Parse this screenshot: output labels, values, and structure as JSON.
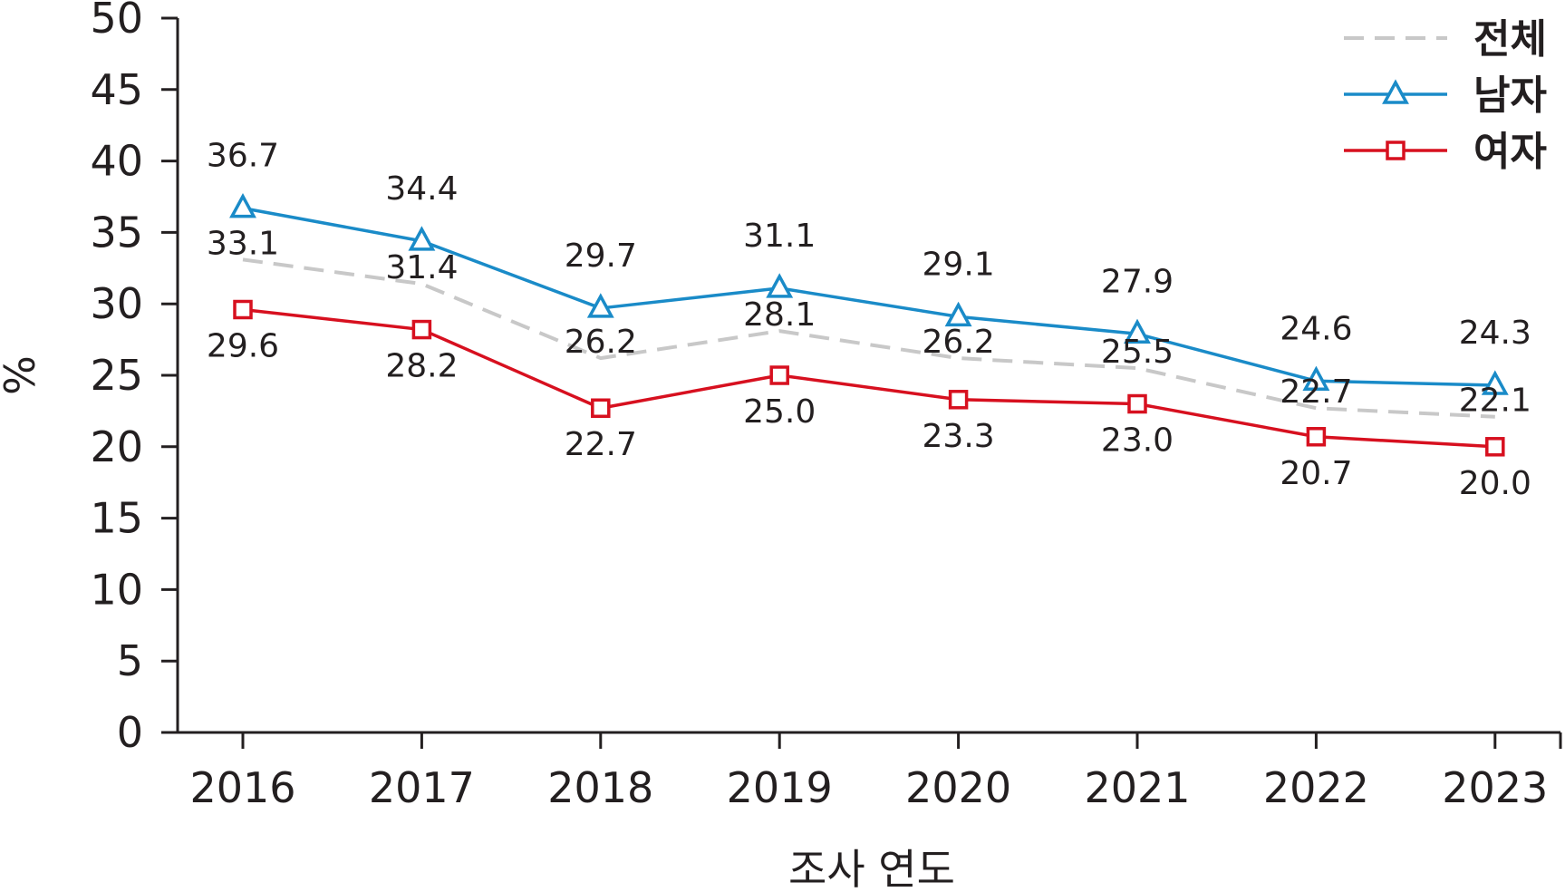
{
  "chart_data": {
    "type": "line",
    "title": "",
    "xlabel": "조사 연도",
    "ylabel": "%",
    "ylim": [
      0,
      50
    ],
    "yticks": [
      0,
      5,
      10,
      15,
      20,
      25,
      30,
      35,
      40,
      45,
      50
    ],
    "categories": [
      "2016",
      "2017",
      "2018",
      "2019",
      "2020",
      "2021",
      "2022",
      "2023"
    ],
    "grid": false,
    "legend_position": "top-right",
    "series": [
      {
        "name": "전체",
        "values": [
          33.1,
          31.4,
          26.2,
          28.1,
          26.2,
          25.5,
          22.7,
          22.1
        ],
        "labels": [
          "33.1",
          "31.4",
          "26.2",
          "28.1",
          "26.2",
          "25.5",
          "22.7",
          "22.1"
        ],
        "color": "#c8c8c8",
        "line_style": "dashed",
        "marker": "none"
      },
      {
        "name": "남자",
        "values": [
          36.7,
          34.4,
          29.7,
          31.1,
          29.1,
          27.9,
          24.6,
          24.3
        ],
        "labels": [
          "36.7",
          "34.4",
          "29.7",
          "31.1",
          "29.1",
          "27.9",
          "24.6",
          "24.3"
        ],
        "color": "#1a8bc8",
        "line_style": "solid",
        "marker": "triangle"
      },
      {
        "name": "여자",
        "values": [
          29.6,
          28.2,
          22.7,
          25.0,
          23.3,
          23.0,
          20.7,
          20.0
        ],
        "labels": [
          "29.6",
          "28.2",
          "22.7",
          "25.0",
          "23.3",
          "23.0",
          "20.7",
          "20.0"
        ],
        "color": "#d7101f",
        "line_style": "solid",
        "marker": "square"
      }
    ]
  }
}
